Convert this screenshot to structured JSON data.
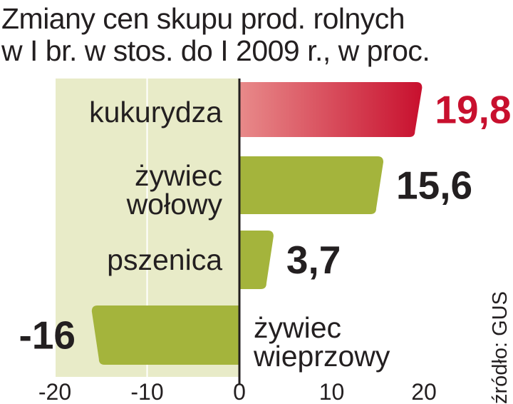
{
  "title_lines": [
    "Zmiany cen skupu prod. rolnych",
    "w I br. w stos. do I 2009 r., w proc."
  ],
  "source": "źródło: GUS",
  "colors": {
    "positive_bar": "#a4b43c",
    "highlight_bar": "#cc1f3e",
    "negative_zone": "#e8ebc8",
    "axis": "#231f20",
    "highlight_text": "#c8102e",
    "text": "#231f20"
  },
  "chart_data": {
    "type": "bar",
    "orientation": "horizontal",
    "title": "Zmiany cen skupu prod. rolnych w I br. w stos. do I 2009 r., w proc.",
    "categories": [
      [
        "kukurydza"
      ],
      [
        "żywiec",
        "wołowy"
      ],
      [
        "pszenica"
      ],
      [
        "żywiec",
        "wieprzowy"
      ]
    ],
    "values": [
      19.8,
      15.6,
      3.7,
      -16
    ],
    "value_labels": [
      "19,8",
      "15,6",
      "3,7",
      "-16"
    ],
    "highlight_index": 0,
    "xlim": [
      -20,
      20
    ],
    "ticks": [
      -20,
      -10,
      0,
      10,
      20
    ],
    "tick_labels": [
      "-20",
      "-10",
      "0",
      "10",
      "20"
    ],
    "grid": true,
    "unit": "%"
  }
}
